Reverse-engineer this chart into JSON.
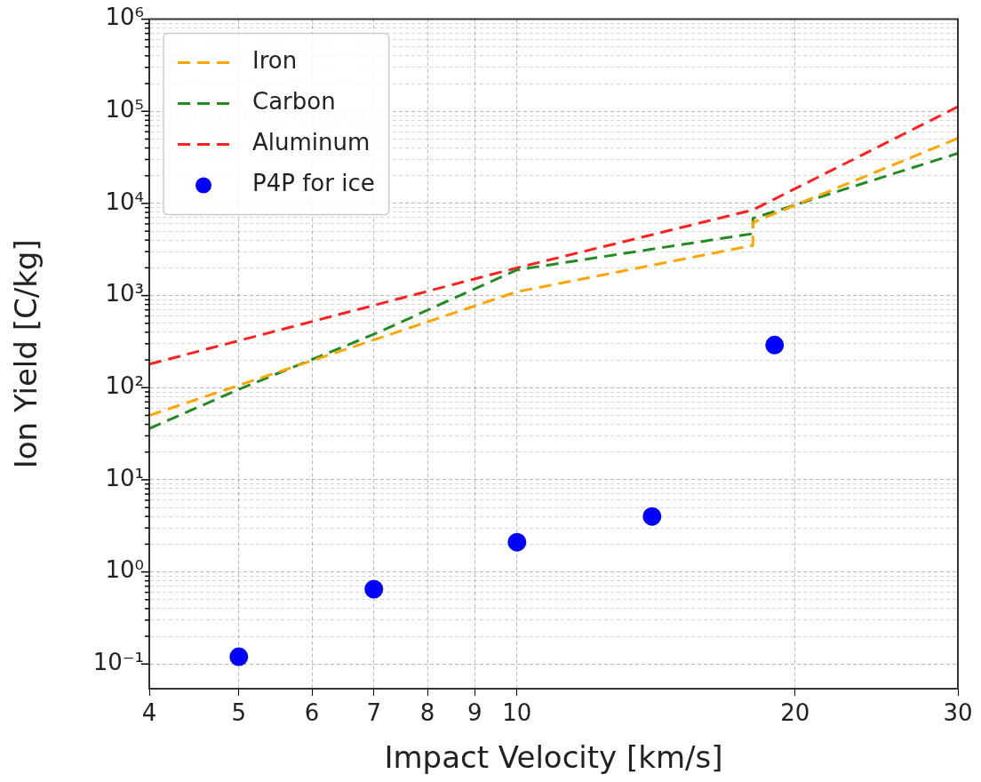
{
  "chart_data": {
    "type": "line",
    "xlabel": "Impact Velocity [km/s]",
    "ylabel": "Ion Yield [C/kg]",
    "log": "xy",
    "grid": true,
    "legend": "top left",
    "xlim": [
      4,
      30
    ],
    "xticks": [
      4,
      5,
      6,
      7,
      8,
      9,
      10,
      20,
      30
    ],
    "ylim": [
      0.054,
      1000000
    ],
    "yticks": [
      {
        "value": 0.1,
        "label": "10⁻¹"
      },
      {
        "value": 0.2,
        "label": null
      },
      {
        "value": 0.3,
        "label": null
      },
      {
        "value": 0.4,
        "label": null
      },
      {
        "value": 0.5,
        "label": null
      },
      {
        "value": 0.6,
        "label": null
      },
      {
        "value": 0.7,
        "label": null
      },
      {
        "value": 0.8,
        "label": null
      },
      {
        "value": 0.9,
        "label": null
      },
      {
        "value": 1,
        "label": "10⁰"
      },
      {
        "value": 2,
        "label": null
      },
      {
        "value": 3,
        "label": null
      },
      {
        "value": 4,
        "label": null
      },
      {
        "value": 5,
        "label": null
      },
      {
        "value": 6,
        "label": null
      },
      {
        "value": 7,
        "label": null
      },
      {
        "value": 8,
        "label": null
      },
      {
        "value": 9,
        "label": null
      },
      {
        "value": 10,
        "label": "10¹"
      },
      {
        "value": 20,
        "label": null
      },
      {
        "value": 30,
        "label": null
      },
      {
        "value": 40,
        "label": null
      },
      {
        "value": 50,
        "label": null
      },
      {
        "value": 60,
        "label": null
      },
      {
        "value": 70,
        "label": null
      },
      {
        "value": 80,
        "label": null
      },
      {
        "value": 90,
        "label": null
      },
      {
        "value": 100,
        "label": "10²"
      },
      {
        "value": 200,
        "label": null
      },
      {
        "value": 300,
        "label": null
      },
      {
        "value": 400,
        "label": null
      },
      {
        "value": 500,
        "label": null
      },
      {
        "value": 600,
        "label": null
      },
      {
        "value": 700,
        "label": null
      },
      {
        "value": 800,
        "label": null
      },
      {
        "value": 900,
        "label": null
      },
      {
        "value": 1000,
        "label": "10³"
      },
      {
        "value": 2000,
        "label": null
      },
      {
        "value": 3000,
        "label": null
      },
      {
        "value": 4000,
        "label": null
      },
      {
        "value": 5000,
        "label": null
      },
      {
        "value": 6000,
        "label": null
      },
      {
        "value": 7000,
        "label": null
      },
      {
        "value": 8000,
        "label": null
      },
      {
        "value": 9000,
        "label": null
      },
      {
        "value": 10000,
        "label": "10⁴"
      },
      {
        "value": 20000,
        "label": null
      },
      {
        "value": 30000,
        "label": null
      },
      {
        "value": 40000,
        "label": null
      },
      {
        "value": 50000,
        "label": null
      },
      {
        "value": 60000,
        "label": null
      },
      {
        "value": 70000,
        "label": null
      },
      {
        "value": 80000,
        "label": null
      },
      {
        "value": 90000,
        "label": null
      },
      {
        "value": 100000,
        "label": "10⁵"
      },
      {
        "value": 200000,
        "label": null
      },
      {
        "value": 300000,
        "label": null
      },
      {
        "value": 400000,
        "label": null
      },
      {
        "value": 500000,
        "label": null
      },
      {
        "value": 600000,
        "label": null
      },
      {
        "value": 700000,
        "label": null
      },
      {
        "value": 800000,
        "label": null
      },
      {
        "value": 900000,
        "label": null
      },
      {
        "value": 1000000,
        "label": "10⁶"
      }
    ],
    "series": [
      {
        "name": "Iron",
        "type": "line",
        "line_style": "dashed",
        "marker": "none",
        "color": "#ffa500",
        "x": [
          4,
          10,
          18,
          18,
          30
        ],
        "values": [
          50,
          1100,
          3500,
          6200,
          51000
        ]
      },
      {
        "name": "Carbon",
        "type": "line",
        "line_style": "dashed",
        "marker": "none",
        "color": "#228b22",
        "x": [
          4,
          5,
          7,
          10,
          18,
          18,
          30
        ],
        "values": [
          36,
          96,
          380,
          1900,
          4700,
          6900,
          35000
        ]
      },
      {
        "name": "Aluminum",
        "type": "line",
        "line_style": "dashed",
        "marker": "none",
        "color": "#ff2020",
        "x": [
          4,
          10,
          18,
          30
        ],
        "values": [
          180,
          2000,
          8500,
          112000
        ]
      },
      {
        "name": "P4P for ice",
        "type": "scatter",
        "marker": "circle",
        "color": "#0000ff",
        "x": [
          5,
          7,
          10,
          14,
          19
        ],
        "values": [
          0.12,
          0.65,
          2.1,
          4.0,
          290
        ]
      }
    ]
  }
}
